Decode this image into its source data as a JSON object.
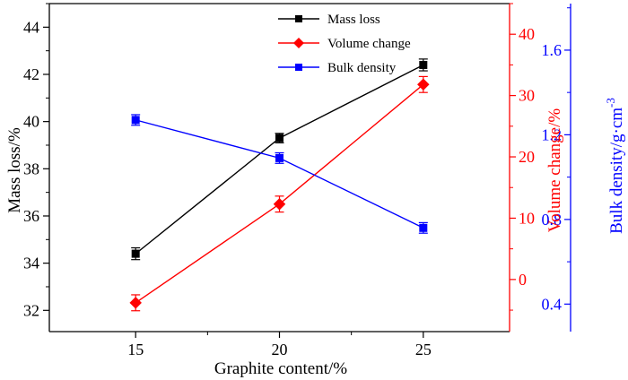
{
  "chart_data": {
    "type": "line",
    "title": "",
    "xlabel": "Graphite content/%",
    "categories": [
      "15",
      "20",
      "25"
    ],
    "x": [
      15,
      20,
      25
    ],
    "xlim": [
      12,
      28
    ],
    "axes": {
      "left": {
        "label": "Mass loss/%",
        "ylim": [
          31.1,
          45
        ],
        "ticks": [
          32,
          34,
          36,
          38,
          40,
          42,
          44
        ],
        "tick_labels": [
          "32",
          "34",
          "36",
          "38",
          "40",
          "42",
          "44"
        ],
        "color": "#000000"
      },
      "right1": {
        "label": "Volume change/%",
        "ylim": [
          -8.5,
          45
        ],
        "ticks": [
          0,
          10,
          20,
          30,
          40
        ],
        "tick_labels": [
          "0",
          "10",
          "20",
          "30",
          "40"
        ],
        "color": "#ff0000"
      },
      "right2": {
        "label": "Bulk density/g·cm",
        "label_superscript": "-3",
        "ylim": [
          0.27,
          1.82
        ],
        "ticks": [
          0.4,
          0.8,
          1.2,
          1.6
        ],
        "tick_labels": [
          "0.4",
          "0.8",
          "1.2",
          "1.6"
        ],
        "color": "#0000ff"
      }
    },
    "series": [
      {
        "name": "Mass loss",
        "axis": "left",
        "color": "#000000",
        "marker": "square",
        "values": [
          34.4,
          39.3,
          42.4
        ],
        "errors": [
          0.25,
          0.2,
          0.25
        ]
      },
      {
        "name": "Volume change",
        "axis": "right1",
        "color": "#ff0000",
        "marker": "diamond",
        "values": [
          -3.8,
          12.3,
          31.8
        ],
        "errors": [
          1.3,
          1.3,
          1.3
        ]
      },
      {
        "name": "Bulk density",
        "axis": "right2",
        "color": "#0000ff",
        "marker": "square",
        "values": [
          1.27,
          1.09,
          0.76
        ],
        "errors": [
          0.025,
          0.025,
          0.025
        ]
      }
    ],
    "legend": {
      "position": "top-center",
      "entries": [
        "Mass loss",
        "Volume change",
        "Bulk density"
      ]
    },
    "grid": false
  }
}
